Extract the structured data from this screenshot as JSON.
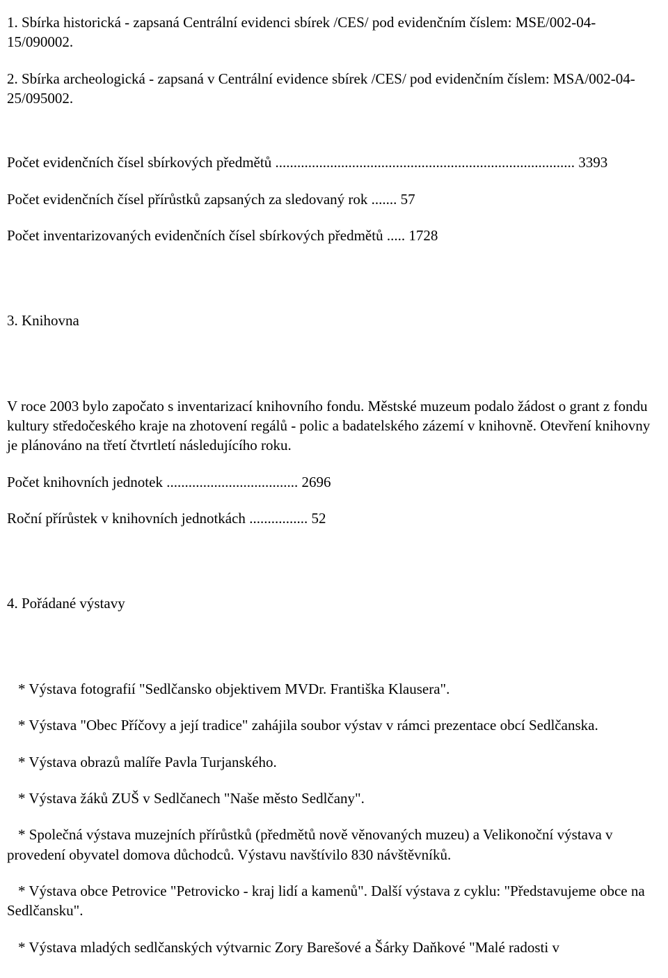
{
  "p1": "1. Sbírka historická - zapsaná Centrální evidenci sbírek /CES/ pod evidenčním číslem: MSE/002-04-15/090002.",
  "p2": "2. Sbírka archeologická - zapsaná v Centrální evidence sbírek /CES/ pod evidenčním číslem: MSA/002-04-25/095002.",
  "count1_label": "Počet evidenčních čísel sbírkových předmětů",
  "count1_value": "3393",
  "count2_label": "Počet evidenčních čísel přírůstků zapsaných za sledovaný rok",
  "count2_value": "57",
  "count3_label": "Počet inventarizovaných evidenčních čísel sbírkových předmětů",
  "count3_value": "1728",
  "section3_heading": "3. Knihovna",
  "sec3_para": "V roce 2003 bylo započato s inventarizací knihovního fondu. Městské muzeum podalo žádost o grant z fondu kultury středočeského kraje na zhotovení regálů - polic a badatelského zázemí v knihovně. Otevření knihovny je plánováno na třetí čtvrtletí následujícího roku.",
  "sec3_c1_label": "Počet knihovních jednotek",
  "sec3_c1_value": "2696",
  "sec3_c2_label": "Roční přírůstek v knihovních jednotkách",
  "sec3_c2_value": "52",
  "section4_heading": "4. Pořádané výstavy",
  "ex1": "* Výstava fotografií \"Sedlčansko objektivem MVDr. Františka Klausera\".",
  "ex2": "* Výstava \"Obec Příčovy a její tradice\" zahájila soubor výstav v rámci prezentace obcí Sedlčanska.",
  "ex3": "* Výstava obrazů malíře Pavla Turjanského.",
  "ex4": "* Výstava žáků ZUŠ v Sedlčanech \"Naše město Sedlčany\".",
  "ex5": "* Společná výstava muzejních přírůstků (předmětů nově věnovaných muzeu) a Velikonoční výstava v provedení obyvatel domova důchodců. Výstavu navštívilo 830 návštěvníků.",
  "ex6": "* Výstava obce Petrovice \"Petrovicko - kraj lidí a kamenů\". Další výstava z cyklu: \"Představujeme obce na Sedlčansku\".",
  "ex7": "* Výstava mladých sedlčanských výtvarnic Zory Barešové a Šárky Daňkové \"Malé radosti v"
}
